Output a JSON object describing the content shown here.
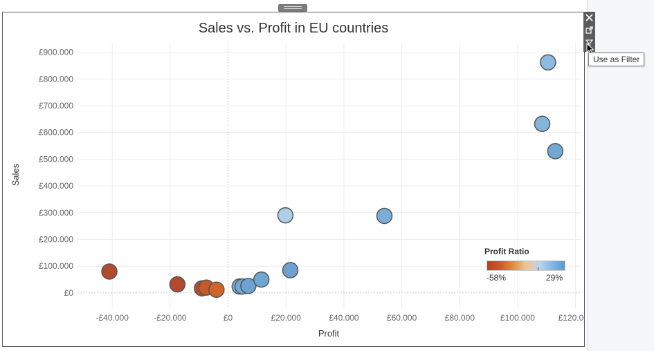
{
  "chart_data": {
    "type": "scatter",
    "title": "Sales vs. Profit in EU countries",
    "xlabel": "Profit",
    "ylabel": "Sales",
    "xlim": [
      -52000,
      122000
    ],
    "ylim": [
      -57000,
      935000
    ],
    "x_ticks": [
      -40000,
      -20000,
      0,
      20000,
      40000,
      60000,
      80000,
      100000,
      120000
    ],
    "x_tick_labels": [
      "-£40.000",
      "-£20.000",
      "£0",
      "£20.000",
      "£40.000",
      "£60.000",
      "£80.000",
      "£100.000",
      "£120.000"
    ],
    "y_ticks": [
      0,
      100000,
      200000,
      300000,
      400000,
      500000,
      600000,
      700000,
      800000,
      900000
    ],
    "y_tick_labels": [
      "£0",
      "£100.000",
      "£200.000",
      "£300.000",
      "£400.000",
      "£500.000",
      "£600.000",
      "£700.000",
      "£800.000",
      "£900.000"
    ],
    "grid": true,
    "points": [
      {
        "x": -41000,
        "y": 80000,
        "color": "#b34a2e"
      },
      {
        "x": -17500,
        "y": 32000,
        "color": "#b34a2e"
      },
      {
        "x": -9000,
        "y": 17000,
        "color": "#b84c2f"
      },
      {
        "x": -7500,
        "y": 20000,
        "color": "#c55a2a"
      },
      {
        "x": -4000,
        "y": 12000,
        "color": "#d2632a"
      },
      {
        "x": 4000,
        "y": 24000,
        "color": "#7fb0d9"
      },
      {
        "x": 5000,
        "y": 24000,
        "color": "#74a8d6"
      },
      {
        "x": 7000,
        "y": 26000,
        "color": "#6ba4d3"
      },
      {
        "x": 11500,
        "y": 50000,
        "color": "#6ea6d4"
      },
      {
        "x": 21500,
        "y": 85000,
        "color": "#6ba2d2"
      },
      {
        "x": 19800,
        "y": 290000,
        "color": "#aecfe8"
      },
      {
        "x": 54000,
        "y": 288000,
        "color": "#7aaed9"
      },
      {
        "x": 108500,
        "y": 632000,
        "color": "#84b6dd"
      },
      {
        "x": 113000,
        "y": 530000,
        "color": "#74a9d6"
      },
      {
        "x": 110500,
        "y": 862000,
        "color": "#8bbbe0"
      }
    ],
    "legend": {
      "title": "Profit Ratio",
      "min_label": "-58%",
      "max_label": "29%",
      "placement": "bottom-right",
      "colors": [
        "#b14325",
        "#cf5a26",
        "#e58a3c",
        "#f2c48f",
        "#bcd5ea",
        "#89b8dd",
        "#5a9bd0"
      ]
    }
  },
  "colors": {
    "grid": "#ececec",
    "axis_text": "#666666",
    "zero_line": "#c8c8c8",
    "marker_stroke": "#555555"
  },
  "ui": {
    "tooltip": "Use as Filter",
    "close_icon": "close-icon",
    "popout_icon": "external-link-icon",
    "filter_icon": "filter-icon"
  }
}
